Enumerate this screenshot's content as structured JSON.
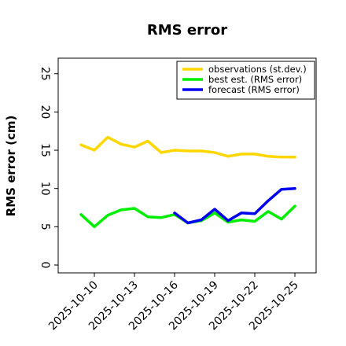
{
  "chart_data": {
    "type": "line",
    "title": "RMS error",
    "xlabel": "",
    "ylabel": "RMS error (cm)",
    "ylim": [
      0,
      26
    ],
    "yticks": [
      0,
      5,
      10,
      15,
      20,
      25
    ],
    "xticks": [
      "2025-10-10",
      "2025-10-13",
      "2025-10-16",
      "2025-10-19",
      "2025-10-22",
      "2025-10-25"
    ],
    "highlight_tick": "2025-10-16",
    "highlight_color": "#228b22",
    "legend_position": "top-right",
    "grid": false,
    "series": [
      {
        "name": "observations (st.dev.)",
        "color": "#ffd700",
        "x": [
          "2025-10-09",
          "2025-10-10",
          "2025-10-11",
          "2025-10-12",
          "2025-10-13",
          "2025-10-14",
          "2025-10-15",
          "2025-10-16",
          "2025-10-17",
          "2025-10-18",
          "2025-10-19",
          "2025-10-20",
          "2025-10-21",
          "2025-10-22",
          "2025-10-23",
          "2025-10-24",
          "2025-10-25"
        ],
        "y": [
          15.7,
          15.0,
          16.7,
          15.8,
          15.4,
          16.2,
          14.7,
          15.0,
          14.9,
          14.9,
          14.7,
          14.2,
          14.5,
          14.5,
          14.2,
          14.1,
          14.1
        ]
      },
      {
        "name": "best est. (RMS error)",
        "color": "#00ee00",
        "x": [
          "2025-10-09",
          "2025-10-10",
          "2025-10-11",
          "2025-10-12",
          "2025-10-13",
          "2025-10-14",
          "2025-10-15",
          "2025-10-16",
          "2025-10-17",
          "2025-10-18",
          "2025-10-19",
          "2025-10-20",
          "2025-10-21",
          "2025-10-22",
          "2025-10-23",
          "2025-10-24",
          "2025-10-25"
        ],
        "y": [
          6.6,
          5.0,
          6.5,
          7.2,
          7.4,
          6.3,
          6.2,
          6.6,
          5.5,
          5.8,
          6.8,
          5.6,
          5.9,
          5.7,
          7.0,
          6.0,
          7.7
        ]
      },
      {
        "name": "forecast (RMS error)",
        "color": "#0000ee",
        "x": [
          "2025-10-16",
          "2025-10-17",
          "2025-10-18",
          "2025-10-19",
          "2025-10-20",
          "2025-10-21",
          "2025-10-22",
          "2025-10-23",
          "2025-10-24",
          "2025-10-25"
        ],
        "y": [
          6.8,
          5.5,
          5.9,
          7.3,
          5.8,
          6.8,
          6.7,
          8.4,
          9.9,
          10.0
        ]
      }
    ]
  }
}
